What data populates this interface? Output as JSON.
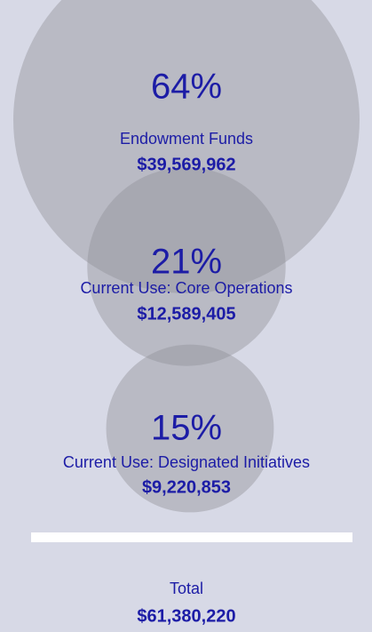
{
  "chart_data": {
    "type": "bubble",
    "categories": [
      "Endowment Funds",
      "Current Use: Core Operations",
      "Current Use: Designated Initiatives"
    ],
    "values": [
      64,
      21,
      15
    ],
    "value_labels": [
      "64%",
      "21%",
      "15%"
    ],
    "amounts": [
      "$39,569,962",
      "$12,589,405",
      "$9,220,853"
    ],
    "color": "#8f8f95",
    "total_title": "Total",
    "total": "$61,380,220"
  }
}
